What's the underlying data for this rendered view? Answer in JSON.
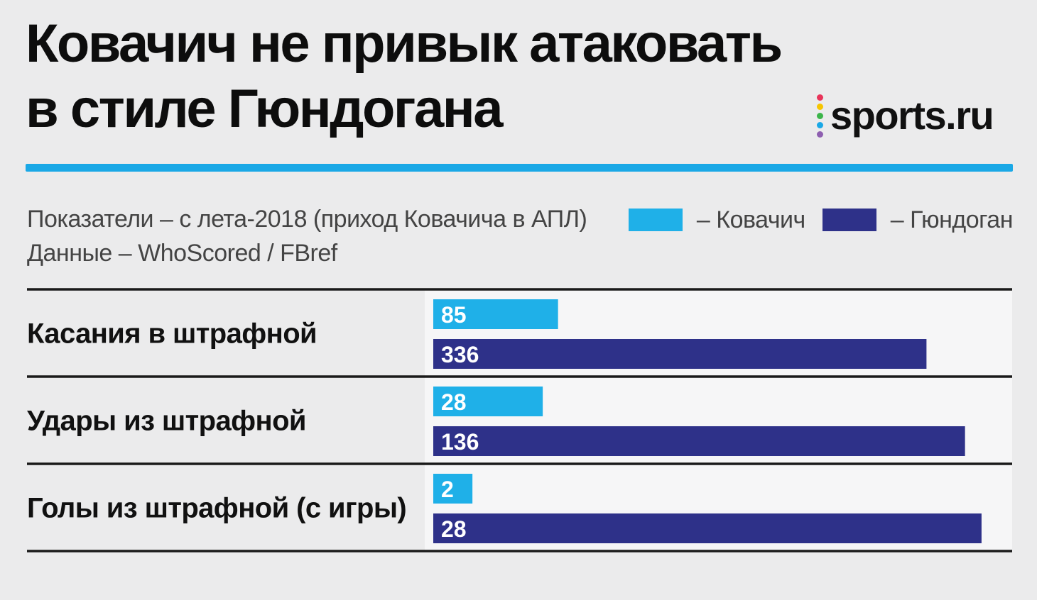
{
  "header": {
    "title_line1": "Ковачич не привык атаковать",
    "title_line2": "в стиле Гюндогана",
    "logo_text": "sports.ru",
    "logo_dot_colors": [
      "#e8345a",
      "#f6c500",
      "#3cb54a",
      "#1aa8e6",
      "#8e5fb0"
    ]
  },
  "subtitle": {
    "line1": "Показатели – с лета-2018 (приход Ковачича в АПЛ)",
    "line2": "Данные – WhoScored / FBref"
  },
  "legend": [
    {
      "label": "– Ковачич",
      "color": "#1fb0e8"
    },
    {
      "label": "– Гюндоган",
      "color": "#2e3189"
    }
  ],
  "colors": {
    "accent": "#1aa8e6",
    "kovacic": "#1fb0e8",
    "gundogan": "#2e3189",
    "rule": "#1a1a1a"
  },
  "chart_data": {
    "type": "bar",
    "orientation": "horizontal",
    "categories": [
      "Касания в штрафной",
      "Удары из штрафной",
      "Голы из штрафной (с игры)"
    ],
    "series": [
      {
        "name": "Ковачич",
        "values": [
          85,
          28,
          2
        ]
      },
      {
        "name": "Гюндоган",
        "values": [
          336,
          136,
          28
        ]
      }
    ],
    "scale": "independent per category",
    "title": "Ковачич не привык атаковать в стиле Гюндогана",
    "xlabel": "",
    "ylabel": "",
    "grid": false,
    "legend_position": "top-right"
  }
}
